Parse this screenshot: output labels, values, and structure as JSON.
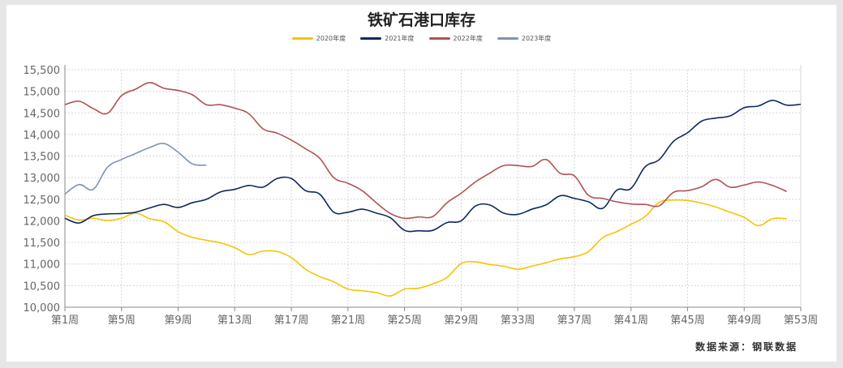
{
  "title": "铁矿石港口库存",
  "source": "数据来源：钢联数据",
  "chart_data": {
    "type": "line",
    "title": "铁矿石港口库存",
    "xlabel": "",
    "ylabel": "",
    "ylim": [
      10000,
      15500
    ],
    "yticks": [
      10000,
      10500,
      11000,
      11500,
      12000,
      12500,
      13000,
      13500,
      14000,
      14500,
      15000,
      15500
    ],
    "ytick_labels": [
      "10,000",
      "10,500",
      "11,000",
      "11,500",
      "12,000",
      "12,500",
      "13,000",
      "13,500",
      "14,000",
      "14,500",
      "15,000",
      "15,500"
    ],
    "xlim": [
      1,
      53
    ],
    "xticks": [
      1,
      5,
      9,
      13,
      17,
      21,
      25,
      29,
      33,
      37,
      41,
      45,
      49,
      53
    ],
    "xtick_labels": [
      "第1周",
      "第5周",
      "第9周",
      "第13周",
      "第17周",
      "第21周",
      "第25周",
      "第29周",
      "第33周",
      "第37周",
      "第41周",
      "第45周",
      "第49周",
      "第53周"
    ],
    "grid": true,
    "legend_position": "top-center",
    "series": [
      {
        "name": "2020年度",
        "color": "#f5c400",
        "x": [
          1,
          2,
          3,
          4,
          5,
          6,
          7,
          8,
          9,
          10,
          11,
          12,
          13,
          14,
          15,
          16,
          17,
          18,
          19,
          20,
          21,
          22,
          23,
          24,
          25,
          26,
          27,
          28,
          29,
          30,
          31,
          32,
          33,
          34,
          35,
          36,
          37,
          38,
          39,
          40,
          41,
          42,
          43,
          44,
          45,
          46,
          47,
          48,
          49,
          50,
          51,
          52
        ],
        "values": [
          12130,
          12020,
          12060,
          12010,
          12060,
          12180,
          12050,
          11980,
          11750,
          11620,
          11550,
          11490,
          11380,
          11220,
          11300,
          11290,
          11150,
          10880,
          10710,
          10590,
          10420,
          10380,
          10340,
          10260,
          10420,
          10440,
          10540,
          10690,
          11010,
          11050,
          10990,
          10950,
          10880,
          10950,
          11030,
          11120,
          11170,
          11290,
          11610,
          11750,
          11920,
          12100,
          12430,
          12480,
          12470,
          12410,
          12320,
          12200,
          12080,
          11890,
          12050,
          12050
        ]
      },
      {
        "name": "2021年度",
        "color": "#0d2a5e",
        "x": [
          1,
          2,
          3,
          4,
          5,
          6,
          7,
          8,
          9,
          10,
          11,
          12,
          13,
          14,
          15,
          16,
          17,
          18,
          19,
          20,
          21,
          22,
          23,
          24,
          25,
          26,
          27,
          28,
          29,
          30,
          31,
          32,
          33,
          34,
          35,
          36,
          37,
          38,
          39,
          40,
          41,
          42,
          43,
          44,
          45,
          46,
          47,
          48,
          49,
          50,
          51,
          52,
          53
        ],
        "values": [
          12060,
          11950,
          12120,
          12160,
          12170,
          12200,
          12300,
          12380,
          12310,
          12420,
          12500,
          12670,
          12730,
          12820,
          12780,
          12980,
          12980,
          12700,
          12620,
          12200,
          12200,
          12270,
          12180,
          12070,
          11780,
          11770,
          11780,
          11960,
          12000,
          12340,
          12370,
          12180,
          12150,
          12270,
          12370,
          12580,
          12520,
          12440,
          12290,
          12710,
          12750,
          13250,
          13420,
          13840,
          14040,
          14310,
          14380,
          14430,
          14620,
          14660,
          14790,
          14680,
          14700
        ]
      },
      {
        "name": "2022年度",
        "color": "#b05252",
        "x": [
          1,
          2,
          3,
          4,
          5,
          6,
          7,
          8,
          9,
          10,
          11,
          12,
          13,
          14,
          15,
          16,
          17,
          18,
          19,
          20,
          21,
          22,
          23,
          24,
          25,
          26,
          27,
          28,
          29,
          30,
          31,
          32,
          33,
          34,
          35,
          36,
          37,
          38,
          39,
          40,
          41,
          42,
          43,
          44,
          45,
          46,
          47,
          48,
          49,
          50,
          51,
          52
        ],
        "values": [
          14690,
          14770,
          14600,
          14490,
          14900,
          15050,
          15200,
          15070,
          15020,
          14920,
          14690,
          14690,
          14610,
          14480,
          14130,
          14030,
          13870,
          13670,
          13450,
          13000,
          12870,
          12700,
          12420,
          12170,
          12060,
          12090,
          12100,
          12420,
          12640,
          12900,
          13100,
          13280,
          13280,
          13260,
          13420,
          13100,
          13040,
          12590,
          12520,
          12440,
          12390,
          12380,
          12350,
          12660,
          12700,
          12790,
          12960,
          12780,
          12830,
          12900,
          12820,
          12680
        ]
      },
      {
        "name": "2023年度",
        "color": "#7f93b5",
        "x": [
          1,
          2,
          3,
          4,
          5,
          6,
          7,
          8,
          9,
          10,
          11
        ],
        "values": [
          12620,
          12840,
          12730,
          13240,
          13420,
          13560,
          13700,
          13790,
          13590,
          13320,
          13290
        ]
      }
    ]
  }
}
